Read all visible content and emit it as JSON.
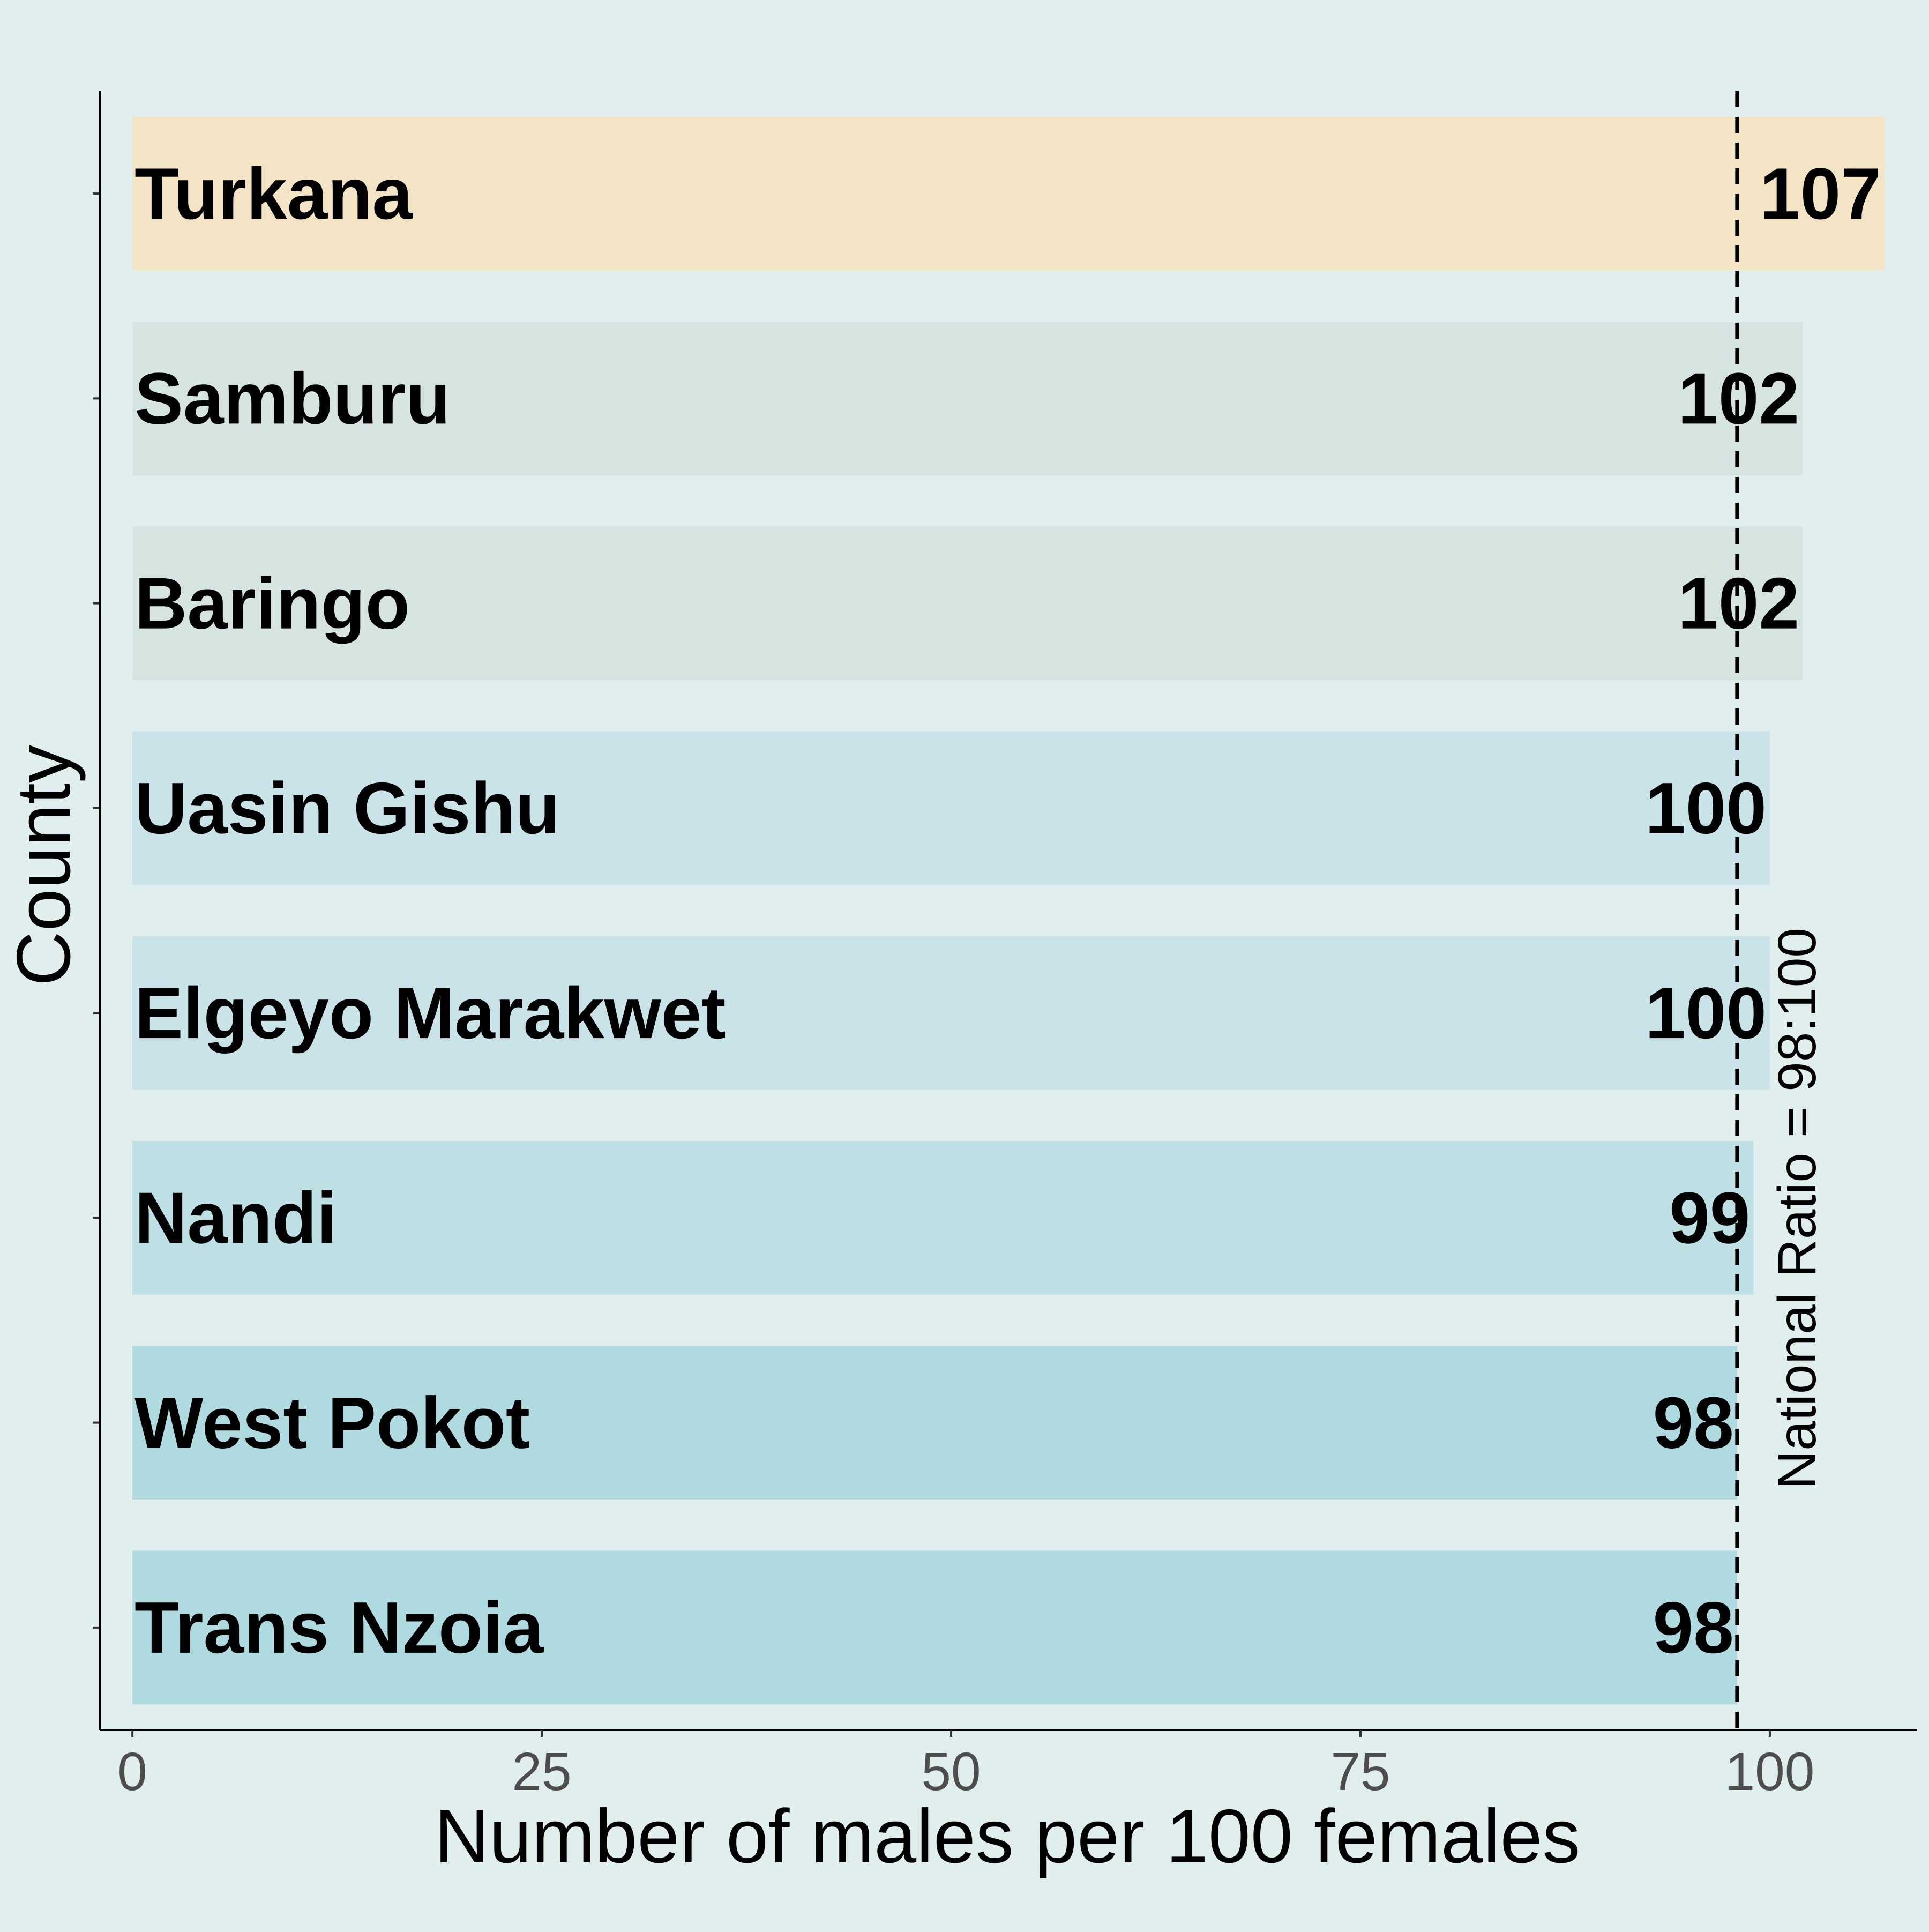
{
  "chart_data": {
    "type": "bar",
    "orientation": "horizontal",
    "categories": [
      "Turkana",
      "Samburu",
      "Baringo",
      "Uasin Gishu",
      "Elgeyo Marakwet",
      "Nandi",
      "West Pokot",
      "Trans Nzoia"
    ],
    "values": [
      107,
      102,
      102,
      100,
      100,
      99,
      98,
      98
    ],
    "value_labels": [
      "107",
      "102",
      "102",
      "100",
      "100",
      "99",
      "98",
      "98"
    ],
    "bar_colors": [
      "#f3e4c6",
      "#d5e4e0",
      "#d5e4e0",
      "#c9e3e8",
      "#c9e3e8",
      "#bee0e4",
      "#afdae0",
      "#afdae0"
    ],
    "xlabel": "Number of males per 100 females",
    "ylabel": "County",
    "xlim": [
      -2,
      109
    ],
    "xticks": [
      0,
      25,
      50,
      75,
      100
    ],
    "xtick_labels": [
      "0",
      "25",
      "50",
      "75",
      "100"
    ],
    "reference_line": {
      "value": 98,
      "style": "dashed",
      "label": "National Ratio = 98:100"
    },
    "grid": false,
    "legend": "none",
    "background": "#e0eeed"
  }
}
